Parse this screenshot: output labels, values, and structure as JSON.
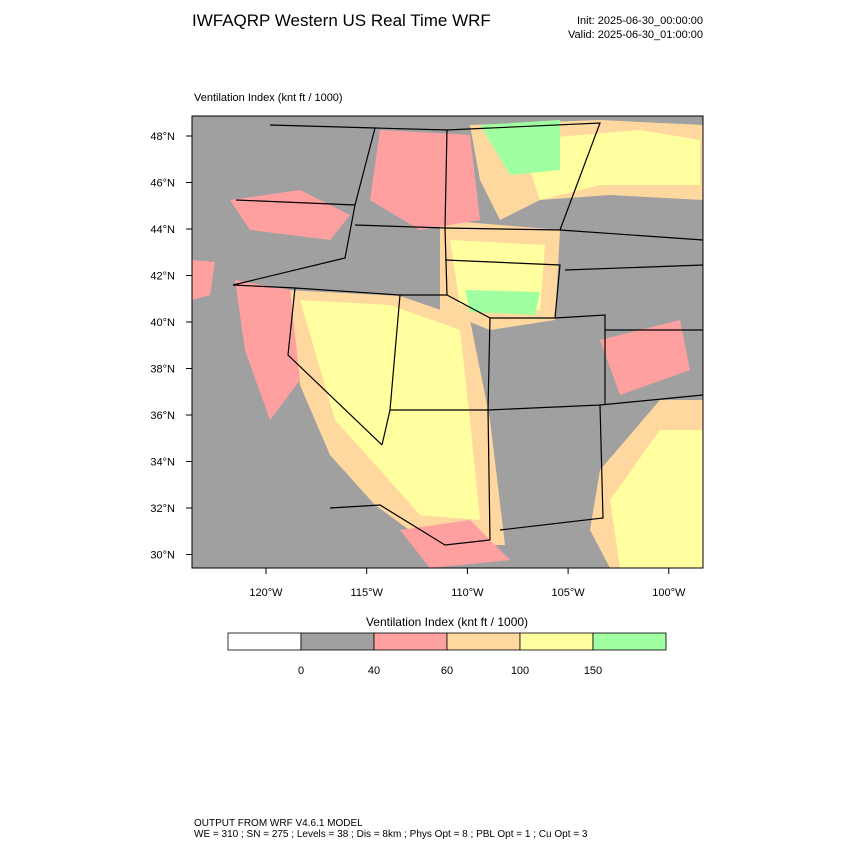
{
  "header": {
    "title": "IWFAQRP Western US Real Time WRF",
    "init": "Init: 2025-06-30_00:00:00",
    "valid": "Valid: 2025-06-30_01:00:00"
  },
  "map": {
    "label": "Ventilation Index   (knt ft / 1000)",
    "lat_labels": [
      "48°N",
      "46°N",
      "44°N",
      "42°N",
      "40°N",
      "38°N",
      "36°N",
      "34°N",
      "32°N",
      "30°N"
    ],
    "lon_labels": [
      "120°W",
      "115°W",
      "110°W",
      "105°W",
      "100°W"
    ]
  },
  "colorbar": {
    "title": "Ventilation Index   (knt ft / 1000)",
    "levels": [
      0,
      40,
      60,
      100,
      150
    ],
    "colors": [
      "#ffffff",
      "#a0a0a0",
      "#ffa0a0",
      "#ffd8a0",
      "#ffff9f",
      "#a0ffa0"
    ]
  },
  "footer": {
    "line1": "OUTPUT FROM WRF V4.6.1 MODEL",
    "line2": "WE = 310 ; SN = 275 ; Levels = 38 ; Dis = 8km ; Phys Opt = 8 ; PBL Opt = 1 ; Cu Opt = 3"
  }
}
